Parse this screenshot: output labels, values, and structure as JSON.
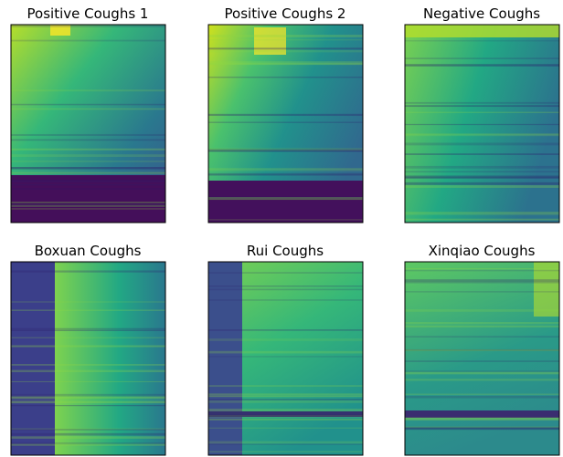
{
  "panels": [
    {
      "title": "Positive Coughs 1"
    },
    {
      "title": "Positive Coughs 2"
    },
    {
      "title": "Negative Coughs"
    },
    {
      "title": "Boxuan Coughs"
    },
    {
      "title": "Rui Coughs"
    },
    {
      "title": "Xinqiao Coughs"
    }
  ]
}
